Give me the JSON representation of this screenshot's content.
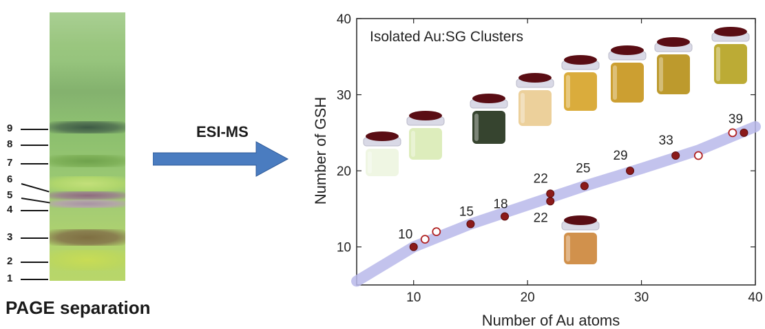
{
  "gel": {
    "caption": "PAGE separation",
    "lanes": [
      "9",
      "8",
      "7",
      "6",
      "5",
      "4",
      "3",
      "2",
      "1"
    ]
  },
  "arrow": {
    "label": "ESI-MS",
    "color": "#4a7cc0"
  },
  "chart_data": {
    "type": "scatter",
    "title": "Isolated Au:SG Clusters",
    "xlabel": "Number of Au atoms",
    "ylabel": "Number of GSH",
    "xlim": [
      5,
      40
    ],
    "ylim": [
      5,
      40
    ],
    "xticks": [
      10,
      20,
      30,
      40
    ],
    "yticks": [
      10,
      20,
      30,
      40
    ],
    "grid": false,
    "series": [
      {
        "marker": "filled",
        "color": "#8b1a1a",
        "x": [
          10,
          15,
          18,
          22,
          22,
          25,
          29,
          33,
          39
        ],
        "y": [
          10,
          13,
          14,
          17,
          16,
          18,
          20,
          22,
          25
        ]
      },
      {
        "marker": "open",
        "color": "#b02020",
        "x": [
          11,
          12,
          35,
          38
        ],
        "y": [
          11,
          12,
          22,
          25
        ]
      }
    ],
    "trend": {
      "color": "#b9b8ea",
      "x": [
        5,
        10,
        15,
        20,
        25,
        30,
        35,
        40
      ],
      "y": [
        5.5,
        10,
        13,
        15.5,
        18,
        20.3,
        22.7,
        25.8
      ]
    },
    "annotations": [
      {
        "text": "10",
        "x": 10,
        "y": 10
      },
      {
        "text": "15",
        "x": 15,
        "y": 13
      },
      {
        "text": "18",
        "x": 18,
        "y": 14
      },
      {
        "text": "22",
        "x": 22,
        "y": 17
      },
      {
        "text": "22",
        "x": 22,
        "y": 16
      },
      {
        "text": "25",
        "x": 25,
        "y": 18
      },
      {
        "text": "29",
        "x": 29,
        "y": 20
      },
      {
        "text": "33",
        "x": 33,
        "y": 22
      },
      {
        "text": "39",
        "x": 39,
        "y": 25
      }
    ]
  }
}
